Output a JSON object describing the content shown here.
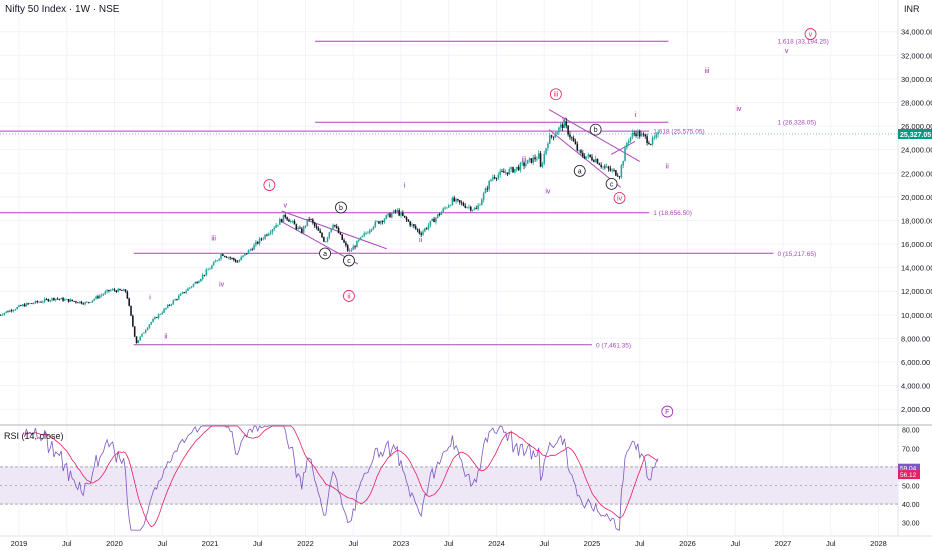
{
  "header": {
    "title": "Nifty 50 Index · 1W · NSE",
    "currency": "INR"
  },
  "colors": {
    "up": "#26a69a",
    "down": "#131722",
    "fib": "#ab47bc",
    "wave": "#9c27b0",
    "wave_circle": "#e91e63",
    "price_badge": "#089981",
    "rsi_line": "#7e57c2",
    "rsi_ma": "#e91e63",
    "rsi_band": "#ede7f6",
    "grid": "#f0f3fa",
    "axis_text": "#131722"
  },
  "rsi_panel": {
    "title": "RSI (14, close)",
    "rsi_value": "59.04",
    "rsi_ma_value": "56.12",
    "upper_band": 60,
    "lower_band": 40,
    "ylim": [
      25,
      82
    ],
    "ticks": [
      "80.00",
      "70.00",
      "60.00",
      "50.00",
      "40.00",
      "30.00"
    ]
  },
  "chart_data": {
    "type": "candlestick",
    "title": "Nifty 50 Index · 1W · NSE",
    "currency": "INR",
    "last_price": "25,327.05",
    "ylim": [
      1000,
      35500
    ],
    "y_ticks": [
      "34,000.00",
      "32,000.00",
      "30,000.00",
      "28,000.00",
      "26,000.00",
      "24,000.00",
      "22,000.00",
      "20,000.00",
      "18,000.00",
      "16,000.00",
      "14,000.00",
      "12,000.00",
      "10,000.00",
      "8,000.00",
      "6,000.00",
      "4,000.00",
      "2,000.00"
    ],
    "x_ticks": [
      "2019",
      "Jul",
      "2020",
      "Jul",
      "2021",
      "Jul",
      "2022",
      "Jul",
      "2023",
      "Jul",
      "2024",
      "Jul",
      "2025",
      "Jul",
      "2026",
      "Jul",
      "2027",
      "Jul",
      "2028"
    ],
    "price_path": [
      [
        "2018-10",
        10000
      ],
      [
        "2019-01",
        10800
      ],
      [
        "2019-05",
        11400
      ],
      [
        "2019-09",
        11000
      ],
      [
        "2019-12",
        12100
      ],
      [
        "2020-02",
        12000
      ],
      [
        "2020-03",
        8500
      ],
      [
        "2020-03-23",
        7610
      ],
      [
        "2020-05",
        9300
      ],
      [
        "2020-08",
        11200
      ],
      [
        "2020-11",
        12900
      ],
      [
        "2021-01",
        14300
      ],
      [
        "2021-02",
        15200
      ],
      [
        "2021-04",
        14500
      ],
      [
        "2021-06",
        15800
      ],
      [
        "2021-10",
        18400
      ],
      [
        "2021-12",
        17000
      ],
      [
        "2022-01",
        18200
      ],
      [
        "2022-03",
        16200
      ],
      [
        "2022-04",
        17800
      ],
      [
        "2022-06",
        15300
      ],
      [
        "2022-09",
        17600
      ],
      [
        "2022-12",
        18800
      ],
      [
        "2023-03",
        16900
      ],
      [
        "2023-07",
        19700
      ],
      [
        "2023-10",
        18900
      ],
      [
        "2023-12",
        21700
      ],
      [
        "2024-03",
        22400
      ],
      [
        "2024-06",
        23500
      ],
      [
        "2024-06-04",
        21300
      ],
      [
        "2024-07",
        24800
      ],
      [
        "2024-09",
        26200
      ],
      [
        "2024-11",
        23600
      ],
      [
        "2025-01",
        23200
      ],
      [
        "2025-02",
        22500
      ],
      [
        "2025-04",
        21900
      ],
      [
        "2025-05",
        24800
      ],
      [
        "2025-06",
        25500
      ],
      [
        "2025-07",
        25100
      ],
      [
        "2025-08",
        24600
      ],
      [
        "2025-09",
        25327
      ]
    ],
    "fib_levels": [
      {
        "label": "1.618 (33,194.25)",
        "value": 33194.25
      },
      {
        "label": "1 (26,328.05)",
        "value": 26328.05
      },
      {
        "label": "1.618 (25,575.05)",
        "value": 25575.05
      },
      {
        "label": "1 (18,656.50)",
        "value": 18656.5
      },
      {
        "label": "0 (15,217.65)",
        "value": 15217.65
      },
      {
        "label": "0 (7,461.35)",
        "value": 7461.35
      }
    ],
    "wave_labels": [
      {
        "text": "i",
        "date": "2020-05",
        "value": 11500
      },
      {
        "text": "ii",
        "date": "2020-07",
        "value": 8200
      },
      {
        "text": "iii",
        "date": "2021-01",
        "value": 16500
      },
      {
        "text": "iv",
        "date": "2021-02",
        "value": 12600
      },
      {
        "text": "v",
        "date": "2021-10",
        "value": 19300
      },
      {
        "text": "a",
        "date": "2022-03",
        "value": 15200,
        "circled": true
      },
      {
        "text": "b",
        "date": "2022-05",
        "value": 19100,
        "circled": true
      },
      {
        "text": "c",
        "date": "2022-06",
        "value": 14600,
        "circled": true
      },
      {
        "text": "i",
        "date": "2021-08",
        "value": 21000,
        "ring": true
      },
      {
        "text": "ii",
        "date": "2022-06",
        "value": 11600,
        "ring": true
      },
      {
        "text": "i",
        "date": "2023-01",
        "value": 21000
      },
      {
        "text": "ii",
        "date": "2023-03",
        "value": 16400
      },
      {
        "text": "iii",
        "date": "2024-04",
        "value": 23200
      },
      {
        "text": "iv",
        "date": "2024-07",
        "value": 20500
      },
      {
        "text": "v",
        "date": "2024-09",
        "value": 26600
      },
      {
        "text": "a",
        "date": "2024-11",
        "value": 22200,
        "circled": true
      },
      {
        "text": "b",
        "date": "2025-01",
        "value": 25700,
        "circled": true
      },
      {
        "text": "c",
        "date": "2025-03",
        "value": 21100,
        "circled": true
      },
      {
        "text": "iii",
        "date": "2024-08",
        "value": 28700,
        "ring": true
      },
      {
        "text": "iv",
        "date": "2025-04",
        "value": 19900,
        "ring": true
      },
      {
        "text": "i",
        "date": "2025-06",
        "value": 27000
      },
      {
        "text": "ii",
        "date": "2025-10",
        "value": 22600
      },
      {
        "text": "iii",
        "date": "2026-03",
        "value": 30700
      },
      {
        "text": "iv",
        "date": "2026-07",
        "value": 27500
      },
      {
        "text": "v",
        "date": "2027-01",
        "value": 32400
      },
      {
        "text": "v",
        "date": "2027-04",
        "value": 33800,
        "ring": true
      },
      {
        "text": "F",
        "date": "2025-10",
        "value": 1800,
        "ring": true
      }
    ]
  }
}
